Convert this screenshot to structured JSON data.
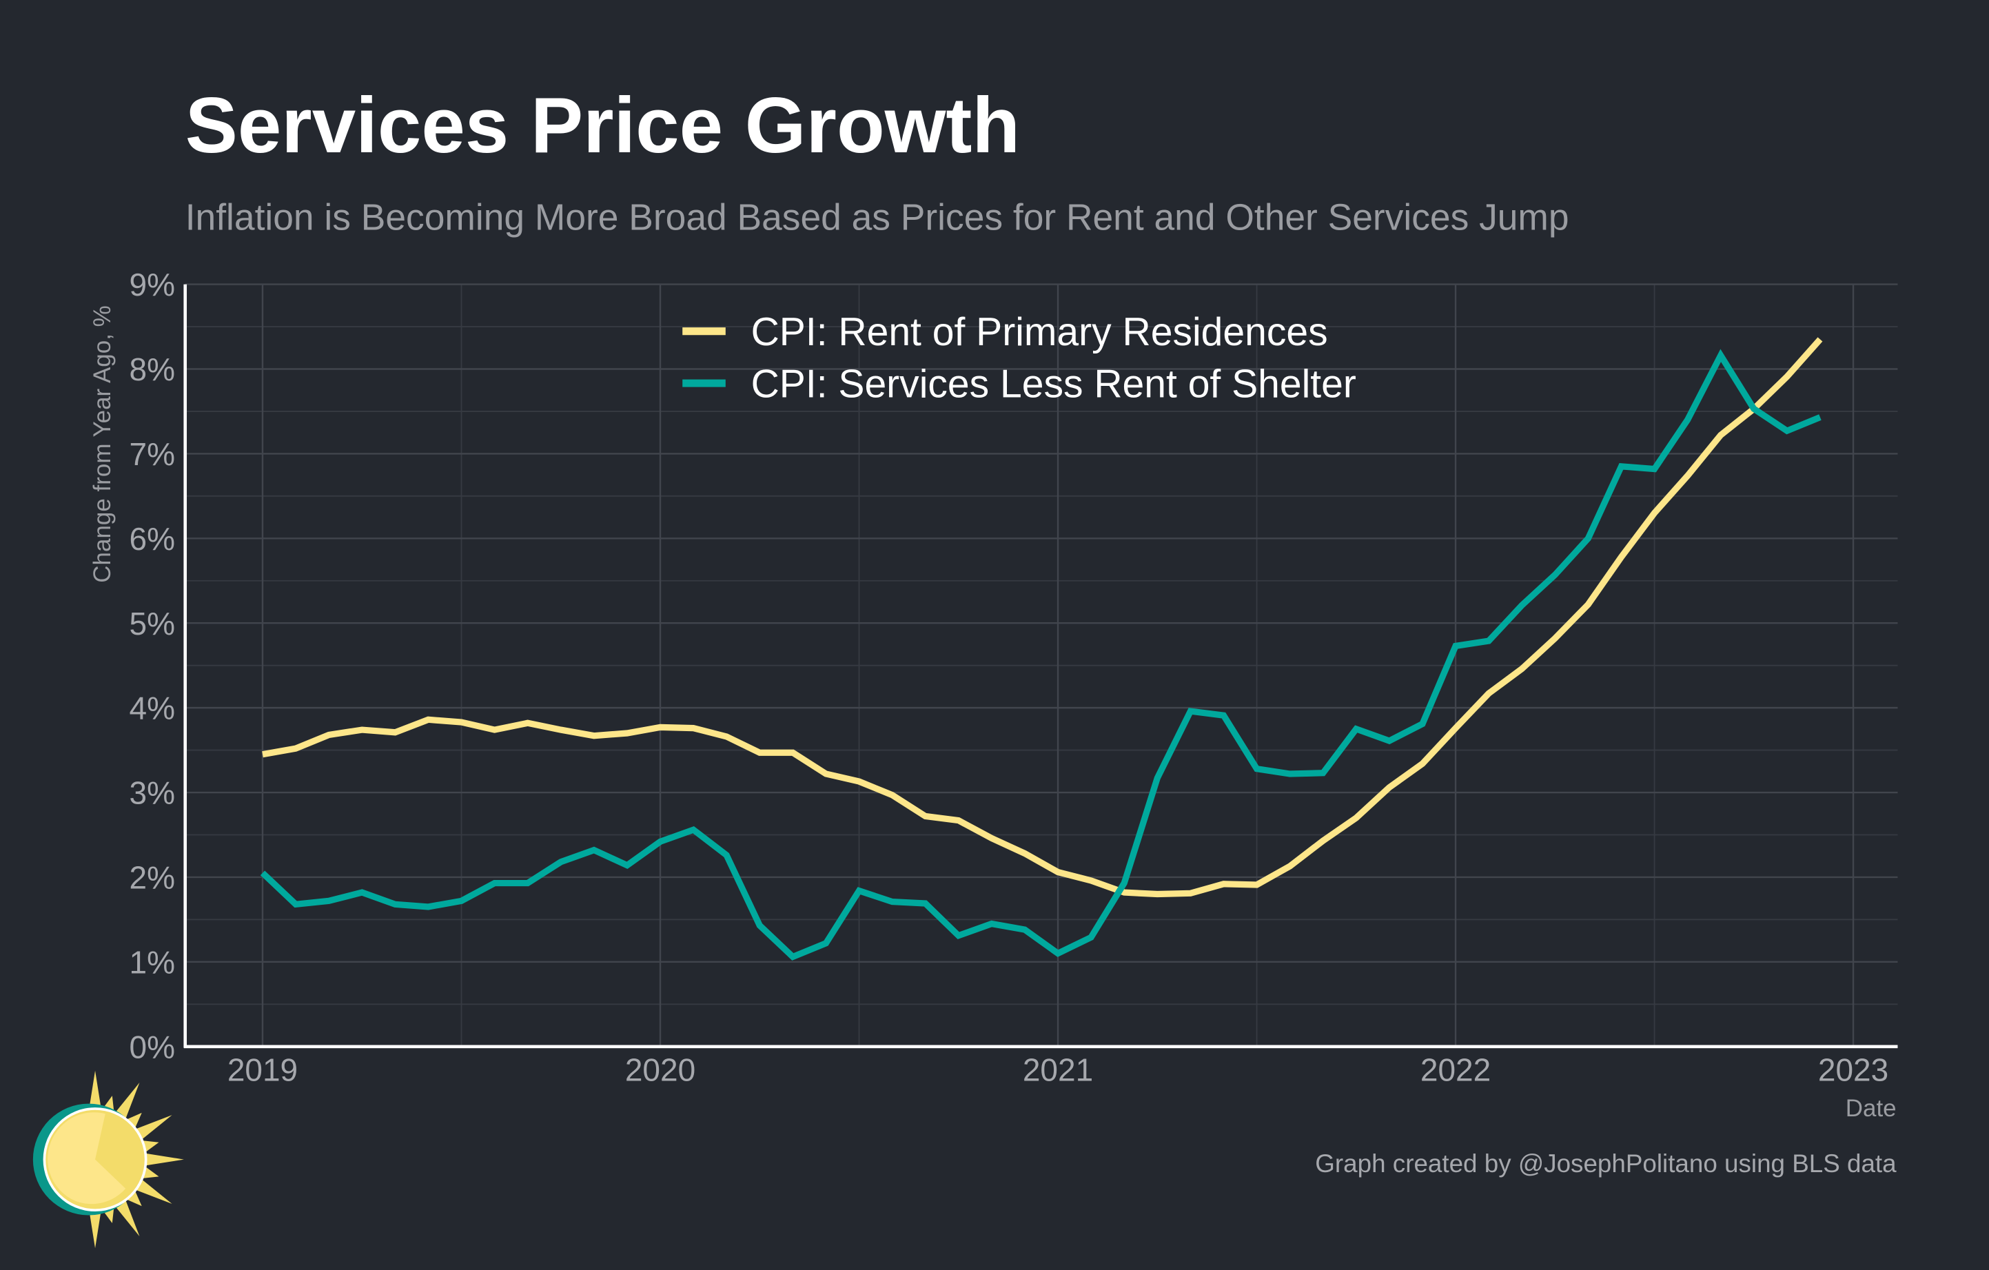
{
  "chart_data": {
    "type": "line",
    "title": "Services Price Growth",
    "subtitle": "Inflation is Becoming More Broad Based as Prices for Rent and Other Services Jump",
    "xlabel": "Date",
    "ylabel": "Change from Year Ago, %",
    "xlim": [
      "2018-10",
      "2023-03"
    ],
    "ylim": [
      0,
      9
    ],
    "grid": true,
    "legend_position": "top-center",
    "x_ticks": [
      "2019",
      "2020",
      "2021",
      "2022",
      "2023"
    ],
    "y_ticks": [
      "0%",
      "1%",
      "2%",
      "3%",
      "4%",
      "5%",
      "6%",
      "7%",
      "8%",
      "9%"
    ],
    "x_start": "2019-01",
    "x_frequency": "monthly",
    "series": [
      {
        "name": "CPI: Rent of Primary Residences",
        "color": "#fde68a",
        "values": [
          3.45,
          3.52,
          3.68,
          3.74,
          3.71,
          3.86,
          3.83,
          3.74,
          3.82,
          3.74,
          3.67,
          3.7,
          3.77,
          3.76,
          3.66,
          3.47,
          3.47,
          3.22,
          3.13,
          2.97,
          2.72,
          2.67,
          2.46,
          2.28,
          2.06,
          1.96,
          1.82,
          1.8,
          1.81,
          1.92,
          1.91,
          2.13,
          2.43,
          2.7,
          3.06,
          3.34,
          3.76,
          4.17,
          4.46,
          4.82,
          5.22,
          5.78,
          6.3,
          6.74,
          7.22,
          7.53,
          7.91,
          8.35
        ]
      },
      {
        "name": "CPI: Services Less Rent of Shelter",
        "color": "#00a99d",
        "values": [
          2.05,
          1.68,
          1.72,
          1.82,
          1.68,
          1.65,
          1.72,
          1.93,
          1.93,
          2.18,
          2.32,
          2.14,
          2.42,
          2.56,
          2.26,
          1.43,
          1.06,
          1.22,
          1.84,
          1.71,
          1.69,
          1.31,
          1.45,
          1.38,
          1.1,
          1.29,
          1.93,
          3.17,
          3.96,
          3.91,
          3.28,
          3.22,
          3.23,
          3.75,
          3.61,
          3.81,
          4.73,
          4.79,
          5.21,
          5.57,
          6.0,
          6.85,
          6.82,
          7.4,
          8.16,
          7.53,
          7.27,
          7.43
        ]
      }
    ],
    "caption": "Graph created by @JosephPolitano using BLS data"
  },
  "colors": {
    "background": "#24282f",
    "axis": "#ffffff"
  },
  "logo": {
    "icon": "sun-icon"
  }
}
